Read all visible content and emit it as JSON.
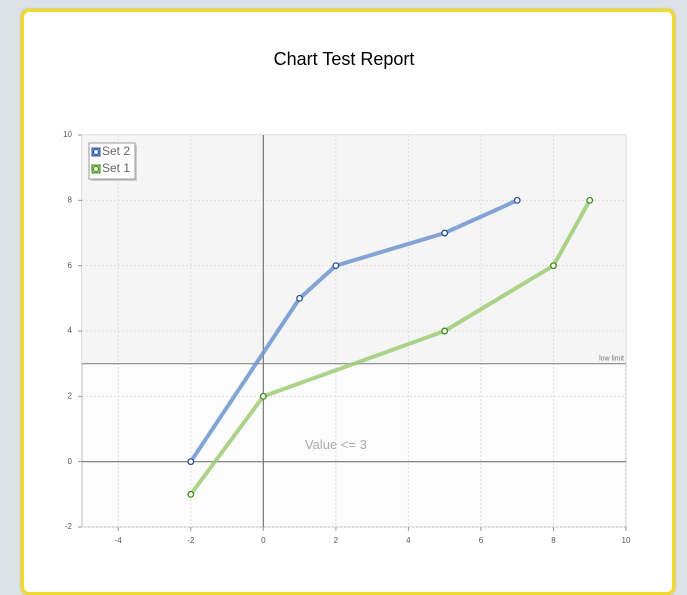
{
  "chart_data": {
    "type": "line",
    "title": "Chart Test Report",
    "xlim": [
      -5,
      10
    ],
    "ylim": [
      -2,
      10
    ],
    "xticks": [
      -4,
      -2,
      0,
      2,
      4,
      6,
      8,
      10
    ],
    "yticks": [
      -2,
      0,
      2,
      4,
      6,
      8,
      10
    ],
    "grid": true,
    "legend": "upper left",
    "series": [
      {
        "name": "Set 2",
        "color": "#6f94d0",
        "x": [
          -2,
          1,
          2,
          5,
          7
        ],
        "values": [
          0,
          5,
          6,
          7,
          8
        ]
      },
      {
        "name": "Set 1",
        "color": "#9ccc74",
        "x": [
          -2,
          0,
          5,
          8,
          9
        ],
        "values": [
          -1,
          2,
          4,
          6,
          8
        ]
      }
    ],
    "reference_line": {
      "value": 3,
      "label": "low limit"
    },
    "annotation": "Value <= 3"
  }
}
